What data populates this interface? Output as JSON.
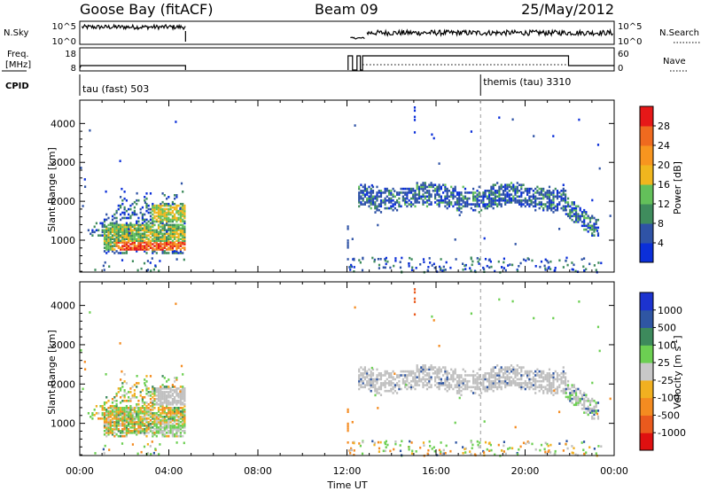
{
  "header": {
    "station": "Goose Bay (fitACF)",
    "beam": "Beam 09",
    "date": "25/May/2012"
  },
  "status_panels": {
    "nsky_label": "N.Sky",
    "nsky_ticks": [
      "10^5",
      "10^0"
    ],
    "nsearch_label": "N.Search",
    "nsearch_ticks": [
      "10^5",
      "10^0"
    ],
    "freq_label_line1": "Freq.",
    "freq_label_line2": "[MHz]",
    "freq_ticks": [
      "18",
      "8"
    ],
    "nave_label": "Nave",
    "nave_ticks": [
      "60",
      "0"
    ],
    "cpid_label": "CPID",
    "cpid_segments": [
      {
        "label": "tau (fast) 503",
        "start_hour": 0.0
      },
      {
        "label": "themis (tau) 3310",
        "start_hour": 18.0
      }
    ]
  },
  "colors": {
    "power_scale": [
      "#0b2fd9",
      "#2f53a6",
      "#3f8c5d",
      "#63c05a",
      "#f0b61e",
      "#f7951f",
      "#ef6a1f",
      "#e61818"
    ],
    "velocity_scale": [
      "#1c33cf",
      "#2f56a3",
      "#3d8a5c",
      "#6ccf52",
      "#c8c8c8",
      "#f1b020",
      "#f48b20",
      "#ea5a1d",
      "#df1010"
    ],
    "ground_scatter": "#c0c0c0",
    "panel_frame": "#000000"
  },
  "chart_data": [
    {
      "type": "heatmap",
      "panel": "power",
      "ylabel": "Slant Range [km]",
      "xlabel": "",
      "y_ticks": [
        "1000",
        "2000",
        "3000",
        "4000"
      ],
      "ylim": [
        180,
        4600
      ],
      "xlim_hours": [
        0,
        24
      ],
      "colorbar": {
        "label": "Power [dB]",
        "tick_labels": [
          "4",
          "8",
          "12",
          "16",
          "20",
          "24",
          "28"
        ],
        "range": [
          0,
          30
        ]
      },
      "regions": [
        {
          "t0": 0.3,
          "t1": 4.7,
          "r0": 700,
          "r1": 2300,
          "level": "high-low",
          "note": "strong echoes 2:00-4:45"
        },
        {
          "t0": 12.5,
          "t1": 21.8,
          "r0": 1700,
          "r1": 2500,
          "level": "low"
        },
        {
          "t0": 21.8,
          "t1": 23.3,
          "r0": 1100,
          "r1": 2100,
          "level": "low-mid"
        },
        {
          "t0": 12.0,
          "t1": 23.5,
          "r0": 180,
          "r1": 500,
          "level": "low",
          "note": "near-range sporadic"
        }
      ]
    },
    {
      "type": "heatmap",
      "panel": "velocity",
      "ylabel": "Slant Range [km]",
      "xlabel": "Time UT",
      "y_ticks": [
        "1000",
        "2000",
        "3000",
        "4000"
      ],
      "ylim": [
        180,
        4600
      ],
      "x_ticks": [
        "00:00",
        "04:00",
        "08:00",
        "12:00",
        "16:00",
        "20:00",
        "00:00"
      ],
      "x_tick_hours": [
        0,
        4,
        8,
        12,
        16,
        20,
        24
      ],
      "colorbar": {
        "label": "Velocity [m s^-1]",
        "tick_labels": [
          "1000",
          "500",
          "100",
          "25",
          "-25",
          "-100",
          "-500",
          "-1000"
        ]
      },
      "regions": [
        {
          "t0": 0.3,
          "t1": 4.7,
          "r0": 700,
          "r1": 2300,
          "class": "mixed positive/negative, ground scatter 3:00-4:45"
        },
        {
          "t0": 12.5,
          "t1": 21.8,
          "r0": 1700,
          "r1": 2500,
          "class": "ground scatter"
        },
        {
          "t0": 21.8,
          "t1": 23.3,
          "r0": 1100,
          "r1": 2100,
          "class": "mixed"
        }
      ]
    }
  ]
}
